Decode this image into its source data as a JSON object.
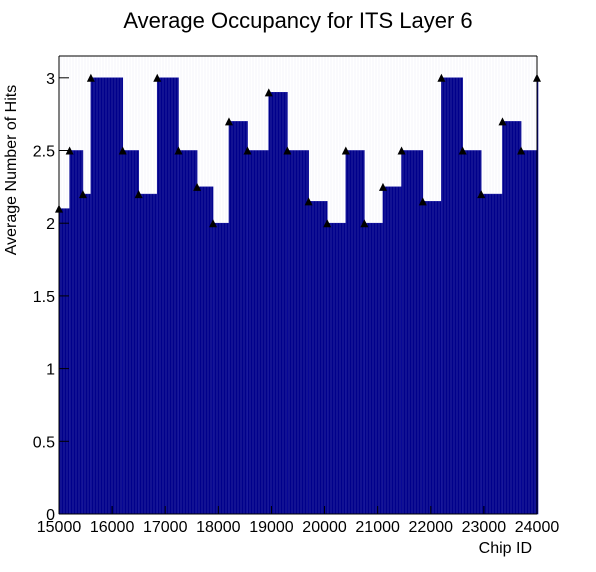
{
  "chart_data": {
    "type": "bar",
    "title": "Average Occupancy for ITS Layer 6",
    "xlabel": "Chip ID",
    "ylabel": "Average Number of Hits",
    "xlim": [
      15000,
      24000
    ],
    "ylim": [
      0,
      3.15
    ],
    "x_ticks": [
      15000,
      16000,
      17000,
      18000,
      19000,
      20000,
      21000,
      22000,
      23000,
      24000
    ],
    "x_tick_labels": [
      "15000",
      "16000",
      "17000",
      "18000",
      "19000",
      "20000",
      "21000",
      "22000",
      "23000",
      "24000"
    ],
    "y_ticks": [
      0,
      0.5,
      1,
      1.5,
      2,
      2.5,
      3
    ],
    "y_tick_labels": [
      "0",
      "0.5",
      "1",
      "1.5",
      "2",
      "2.5",
      "3"
    ],
    "grid": false,
    "legend": "none",
    "series": [
      {
        "bar_color": "#00008b",
        "bar_edge_color": "#0a0a9a",
        "marker": "triangle",
        "marker_color": "#000000",
        "x": [
          15000,
          15200,
          15450,
          15600,
          16200,
          16500,
          16850,
          17250,
          17600,
          17900,
          18200,
          18550,
          18950,
          19300,
          19700,
          20050,
          20400,
          20750,
          21100,
          21450,
          21850,
          22200,
          22600,
          22950,
          23350,
          23700,
          24000
        ],
        "values": [
          2.1,
          2.5,
          2.2,
          3.0,
          2.5,
          2.2,
          3.0,
          2.5,
          2.25,
          2.0,
          2.7,
          2.5,
          2.9,
          2.5,
          2.15,
          2.0,
          2.5,
          2.0,
          2.25,
          2.5,
          2.15,
          3.0,
          2.5,
          2.2,
          2.7,
          2.5,
          3.0
        ]
      }
    ]
  }
}
